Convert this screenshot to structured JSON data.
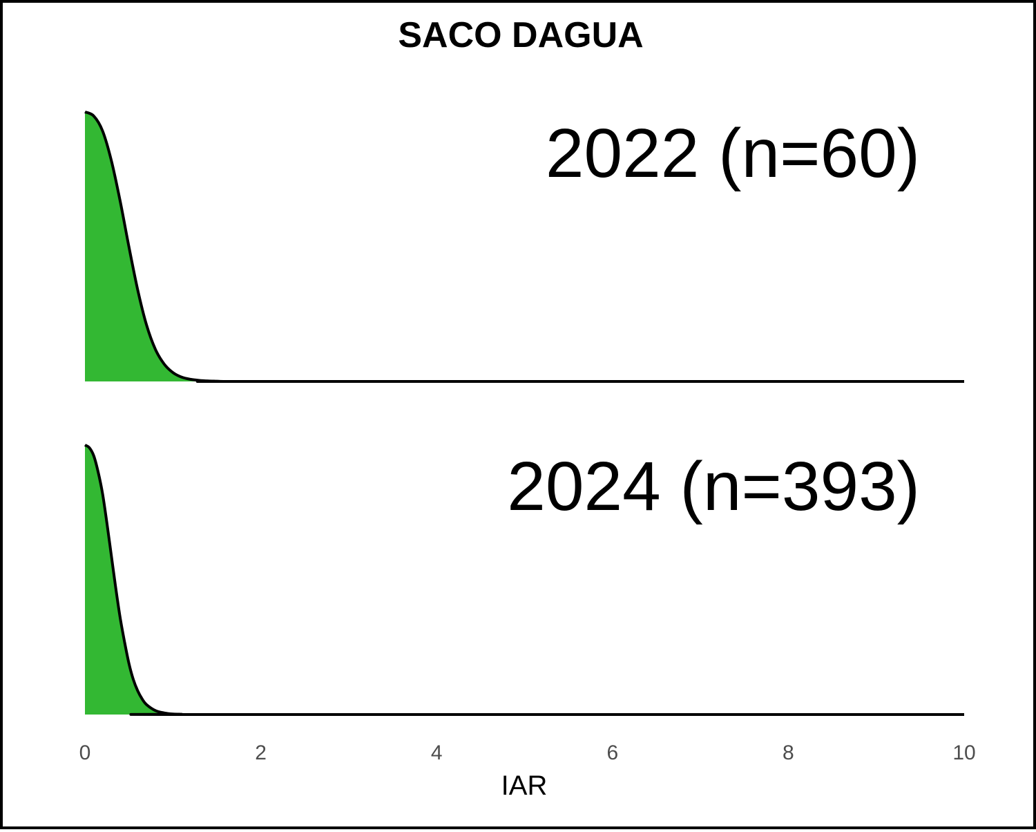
{
  "chart_data": {
    "type": "area",
    "title": "SACO DAGUA",
    "xlabel": "IAR",
    "ylabel": "",
    "xlim": [
      0,
      10
    ],
    "x_ticks": [
      "0",
      "2",
      "4",
      "6",
      "8",
      "10"
    ],
    "fill_color": "#33b833",
    "line_color": "#000000",
    "panels": [
      {
        "label": "2022 (n=60)",
        "x": [
          0.0,
          0.1,
          0.2,
          0.3,
          0.4,
          0.5,
          0.6,
          0.7,
          0.8,
          0.9,
          1.0,
          1.1,
          1.2,
          1.3,
          1.4,
          1.5,
          1.6,
          2.0,
          10.0
        ],
        "density": [
          1.0,
          0.985,
          0.93,
          0.82,
          0.67,
          0.5,
          0.34,
          0.21,
          0.12,
          0.065,
          0.033,
          0.016,
          0.008,
          0.004,
          0.002,
          0.001,
          0.0,
          0.0,
          0.0
        ]
      },
      {
        "label": "2024 (n=393)",
        "x": [
          0.0,
          0.05,
          0.1,
          0.15,
          0.2,
          0.25,
          0.3,
          0.35,
          0.4,
          0.45,
          0.5,
          0.55,
          0.6,
          0.65,
          0.7,
          0.8,
          0.9,
          1.0,
          1.1,
          1.2,
          10.0
        ],
        "density": [
          1.0,
          0.99,
          0.96,
          0.9,
          0.82,
          0.71,
          0.59,
          0.47,
          0.36,
          0.27,
          0.19,
          0.13,
          0.088,
          0.058,
          0.037,
          0.015,
          0.006,
          0.002,
          0.001,
          0.0,
          0.0
        ]
      }
    ]
  }
}
